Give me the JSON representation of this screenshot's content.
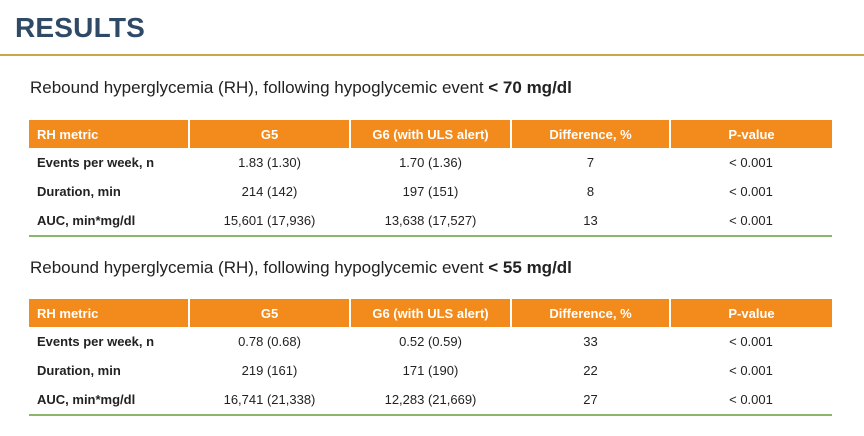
{
  "title": "RESULTS",
  "sections": [
    {
      "subtitle_text": "Rebound hyperglycemia (RH), following hypoglycemic event",
      "threshold": "< 70 mg/dl",
      "headers": [
        "RH metric",
        "G5",
        "G6 (with ULS alert)",
        "Difference, %",
        "P-value"
      ],
      "rows": [
        [
          "Events per week, n",
          "1.83 (1.30)",
          "1.70 (1.36)",
          "7",
          "< 0.001"
        ],
        [
          "Duration, min",
          "214 (142)",
          "197 (151)",
          "8",
          "< 0.001"
        ],
        [
          "AUC, min*mg/dl",
          "15,601 (17,936)",
          "13,638 (17,527)",
          "13",
          "< 0.001"
        ]
      ]
    },
    {
      "subtitle_text": "Rebound hyperglycemia (RH), following hypoglycemic event",
      "threshold": "< 55 mg/dl",
      "headers": [
        "RH metric",
        "G5",
        "G6 (with ULS alert)",
        "Difference, %",
        "P-value"
      ],
      "rows": [
        [
          "Events per week, n",
          "0.78 (0.68)",
          "0.52 (0.59)",
          "33",
          "< 0.001"
        ],
        [
          "Duration, min",
          "219 (161)",
          "171 (190)",
          "22",
          "< 0.001"
        ],
        [
          "AUC, min*mg/dl",
          "16,741 (21,338)",
          "12,283 (21,669)",
          "27",
          "< 0.001"
        ]
      ]
    }
  ],
  "colors": {
    "title": "#2f4a66",
    "title_rule": "#c9a64c",
    "header_bg": "#f28a1c",
    "header_text": "#ffffff",
    "table_bottom_rule": "#8bb56a"
  }
}
